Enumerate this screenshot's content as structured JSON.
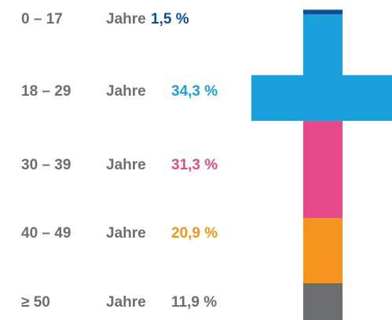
{
  "chart_data": {
    "type": "stacked-cross",
    "categories": [
      "0 – 17",
      "18 – 29",
      "30 – 39",
      "40 – 49",
      "≥ 50"
    ],
    "category_suffix": "Jahre",
    "values": [
      1.5,
      34.3,
      31.3,
      20.9,
      11.9
    ],
    "value_labels": [
      "1,5 %",
      "34,3 %",
      "31,3 %",
      "20,9 %",
      "11,9 %"
    ],
    "colors": [
      "#0b4f9c",
      "#1aa0dc",
      "#e8498a",
      "#f5951e",
      "#6d6e71"
    ],
    "ylim": [
      0,
      100
    ]
  }
}
